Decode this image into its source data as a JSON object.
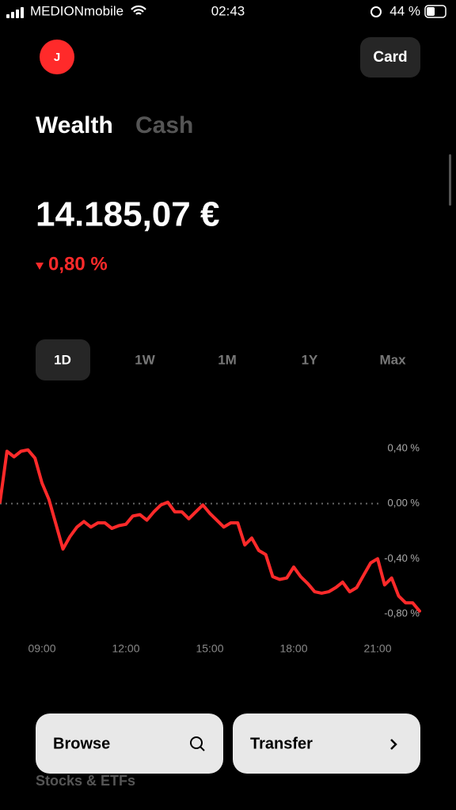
{
  "status_bar": {
    "carrier": "MEDIONmobile",
    "time": "02:43",
    "battery": "44 %"
  },
  "header": {
    "avatar": "J",
    "card_button": "Card"
  },
  "tabs": [
    "Wealth",
    "Cash"
  ],
  "balance": "14.185,07 €",
  "change": "0,80 %",
  "ranges": [
    "1D",
    "1W",
    "1M",
    "1Y",
    "Max"
  ],
  "chart_data": {
    "type": "line",
    "x": [
      7.5,
      7.75,
      8,
      8.25,
      8.5,
      8.75,
      9,
      9.25,
      9.5,
      9.75,
      10,
      10.25,
      10.5,
      10.75,
      11,
      11.25,
      11.5,
      11.75,
      12,
      12.25,
      12.5,
      12.75,
      13,
      13.25,
      13.5,
      13.75,
      14,
      14.25,
      14.5,
      14.75,
      15,
      15.25,
      15.5,
      15.75,
      16,
      16.25,
      16.5,
      16.75,
      17,
      17.25,
      17.5,
      17.75,
      18,
      18.25,
      18.5,
      18.75,
      19,
      19.25,
      19.5,
      19.75,
      20,
      20.25,
      20.5,
      20.75,
      21,
      21.25,
      21.5,
      21.75,
      22,
      22.25,
      22.5
    ],
    "series": [
      {
        "color": "#ff2a2a",
        "values": [
          0.01,
          0.38,
          0.34,
          0.38,
          0.39,
          0.33,
          0.15,
          0.03,
          -0.15,
          -0.33,
          -0.24,
          -0.17,
          -0.13,
          -0.17,
          -0.14,
          -0.14,
          -0.18,
          -0.16,
          -0.15,
          -0.09,
          -0.08,
          -0.12,
          -0.06,
          -0.01,
          0.01,
          -0.06,
          -0.06,
          -0.11,
          -0.06,
          -0.01,
          -0.07,
          -0.12,
          -0.17,
          -0.14,
          -0.14,
          -0.3,
          -0.25,
          -0.34,
          -0.37,
          -0.53,
          -0.55,
          -0.54,
          -0.46,
          -0.53,
          -0.58,
          -0.64,
          -0.65,
          -0.64,
          -0.61,
          -0.57,
          -0.64,
          -0.61,
          -0.52,
          -0.43,
          -0.4,
          -0.59,
          -0.54,
          -0.67,
          -0.72,
          -0.72,
          -0.78
        ]
      }
    ],
    "xlim": [
      7.5,
      22.5
    ],
    "xticks": [
      {
        "value": 9,
        "label": "09:00"
      },
      {
        "value": 12,
        "label": "12:00"
      },
      {
        "value": 15,
        "label": "15:00"
      },
      {
        "value": 18,
        "label": "18:00"
      },
      {
        "value": 21,
        "label": "21:00"
      }
    ],
    "ylim": [
      -0.8,
      0.4
    ],
    "yticks": [
      {
        "value": 0.4,
        "label": "0,40 %"
      },
      {
        "value": 0,
        "label": "0,00 %"
      },
      {
        "value": -0.4,
        "label": "-0,40 %"
      },
      {
        "value": -0.8,
        "label": "-0,80 %"
      }
    ],
    "reference_line": 0
  },
  "actions": {
    "browse": "Browse",
    "transfer": "Transfer"
  },
  "section": "Stocks & ETFs"
}
